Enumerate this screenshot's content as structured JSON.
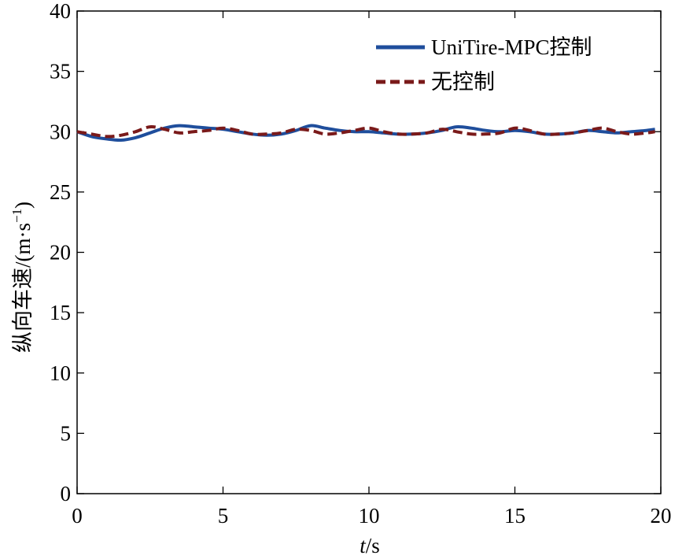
{
  "chart_data": {
    "type": "line",
    "xlabel": {
      "var": "t",
      "rest": "/s"
    },
    "ylabel": {
      "main": "纵向车速/(m·s",
      "sup": "−1",
      "close": ")"
    },
    "xlim": [
      0,
      20
    ],
    "ylim": [
      0,
      40
    ],
    "xticks": [
      0,
      5,
      10,
      15,
      20
    ],
    "yticks": [
      0,
      5,
      10,
      15,
      20,
      25,
      30,
      35,
      40
    ],
    "grid": false,
    "legend_position": "top-right",
    "series": [
      {
        "name": "UniTire-MPC控制",
        "color": "#1f4e9c",
        "style": "solid",
        "x": [
          0,
          0.5,
          1.0,
          1.5,
          2.0,
          2.5,
          3.0,
          3.5,
          4.0,
          4.5,
          5.0,
          5.5,
          6.0,
          6.5,
          7.0,
          7.5,
          8.0,
          8.5,
          9.0,
          9.5,
          10.0,
          10.5,
          11.0,
          11.5,
          12.0,
          12.5,
          13.0,
          13.5,
          14.0,
          14.5,
          15.0,
          15.5,
          16.0,
          16.5,
          17.0,
          17.5,
          18.0,
          18.5,
          19.0,
          19.5,
          19.8
        ],
        "y": [
          30.0,
          29.6,
          29.4,
          29.3,
          29.5,
          29.9,
          30.3,
          30.5,
          30.4,
          30.3,
          30.2,
          30.0,
          29.8,
          29.7,
          29.8,
          30.1,
          30.5,
          30.3,
          30.1,
          30.0,
          30.0,
          29.9,
          29.8,
          29.8,
          29.9,
          30.1,
          30.4,
          30.3,
          30.1,
          30.0,
          30.1,
          30.0,
          29.8,
          29.8,
          29.9,
          30.1,
          30.0,
          29.9,
          30.0,
          30.1,
          30.2
        ]
      },
      {
        "name": "无控制",
        "color": "#7a1a1a",
        "style": "dashed",
        "x": [
          0,
          0.5,
          1.0,
          1.5,
          2.0,
          2.5,
          3.0,
          3.5,
          4.0,
          4.5,
          5.0,
          5.5,
          6.0,
          6.5,
          7.0,
          7.5,
          8.0,
          8.5,
          9.0,
          9.5,
          10.0,
          10.5,
          11.0,
          11.5,
          12.0,
          12.5,
          13.0,
          13.5,
          14.0,
          14.5,
          15.0,
          15.5,
          16.0,
          16.5,
          17.0,
          17.5,
          18.0,
          18.5,
          19.0,
          19.5,
          19.8
        ],
        "y": [
          30.0,
          29.8,
          29.6,
          29.7,
          30.0,
          30.4,
          30.2,
          29.9,
          30.0,
          30.1,
          30.3,
          30.1,
          29.8,
          29.8,
          29.9,
          30.2,
          30.1,
          29.8,
          29.9,
          30.1,
          30.3,
          30.0,
          29.8,
          29.8,
          29.9,
          30.2,
          30.0,
          29.8,
          29.8,
          29.9,
          30.3,
          30.1,
          29.8,
          29.8,
          29.9,
          30.1,
          30.3,
          30.0,
          29.8,
          29.9,
          30.0
        ]
      }
    ]
  }
}
